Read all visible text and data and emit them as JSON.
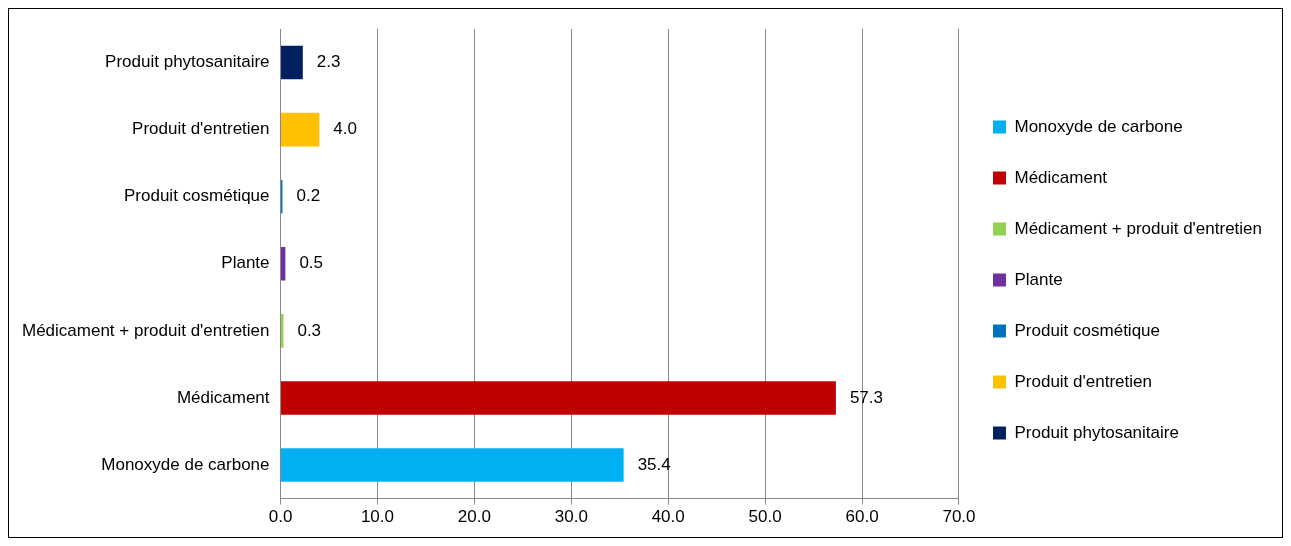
{
  "chart_data": {
    "type": "bar",
    "orientation": "horizontal",
    "stacked": true,
    "categories": [
      "Produit phytosanitaire",
      "Produit d'entretien",
      "Produit cosmétique",
      "Plante",
      "Médicament + produit d'entretien",
      "Médicament",
      "Monoxyde de carbone"
    ],
    "series": [
      {
        "name": "Monoxyde de carbone",
        "color": "#00b0f0",
        "values": [
          null,
          null,
          null,
          null,
          null,
          null,
          35.4
        ],
        "value_labels": [
          null,
          null,
          null,
          null,
          null,
          null,
          "35.4"
        ]
      },
      {
        "name": "Médicament",
        "color": "#c00000",
        "values": [
          null,
          null,
          null,
          null,
          null,
          57.3,
          null
        ],
        "value_labels": [
          null,
          null,
          null,
          null,
          null,
          "57.3",
          null
        ]
      },
      {
        "name": "Médicament + produit d'entretien",
        "color": "#92d050",
        "values": [
          null,
          null,
          null,
          null,
          0.3,
          null,
          null
        ],
        "value_labels": [
          null,
          null,
          null,
          null,
          "0.3",
          null,
          null
        ]
      },
      {
        "name": "Plante",
        "color": "#7030a0",
        "values": [
          null,
          null,
          null,
          0.5,
          null,
          null,
          null
        ],
        "value_labels": [
          null,
          null,
          null,
          "0.5",
          null,
          null,
          null
        ]
      },
      {
        "name": "Produit cosmétique",
        "color": "#0070c0",
        "values": [
          null,
          null,
          0.2,
          null,
          null,
          null,
          null
        ],
        "value_labels": [
          null,
          null,
          "0.2",
          null,
          null,
          null,
          null
        ]
      },
      {
        "name": "Produit d'entretien",
        "color": "#ffc000",
        "values": [
          null,
          4.0,
          null,
          null,
          null,
          null,
          null
        ],
        "value_labels": [
          null,
          "4.0",
          null,
          null,
          null,
          null,
          null
        ]
      },
      {
        "name": "Produit phytosanitaire",
        "color": "#002060",
        "values": [
          2.3,
          null,
          null,
          null,
          null,
          null,
          null
        ],
        "value_labels": [
          "2.3",
          null,
          null,
          null,
          null,
          null,
          null
        ]
      }
    ],
    "xlim": [
      0,
      70
    ],
    "xticks": [
      {
        "value": 0,
        "label": "0.0"
      },
      {
        "value": 10,
        "label": "10.0"
      },
      {
        "value": 20,
        "label": "20.0"
      },
      {
        "value": 30,
        "label": "30.0"
      },
      {
        "value": 40,
        "label": "40.0"
      },
      {
        "value": 50,
        "label": "50.0"
      },
      {
        "value": 60,
        "label": "60.0"
      },
      {
        "value": 70,
        "label": "70.0"
      }
    ],
    "grid": "x",
    "legend": "right"
  }
}
